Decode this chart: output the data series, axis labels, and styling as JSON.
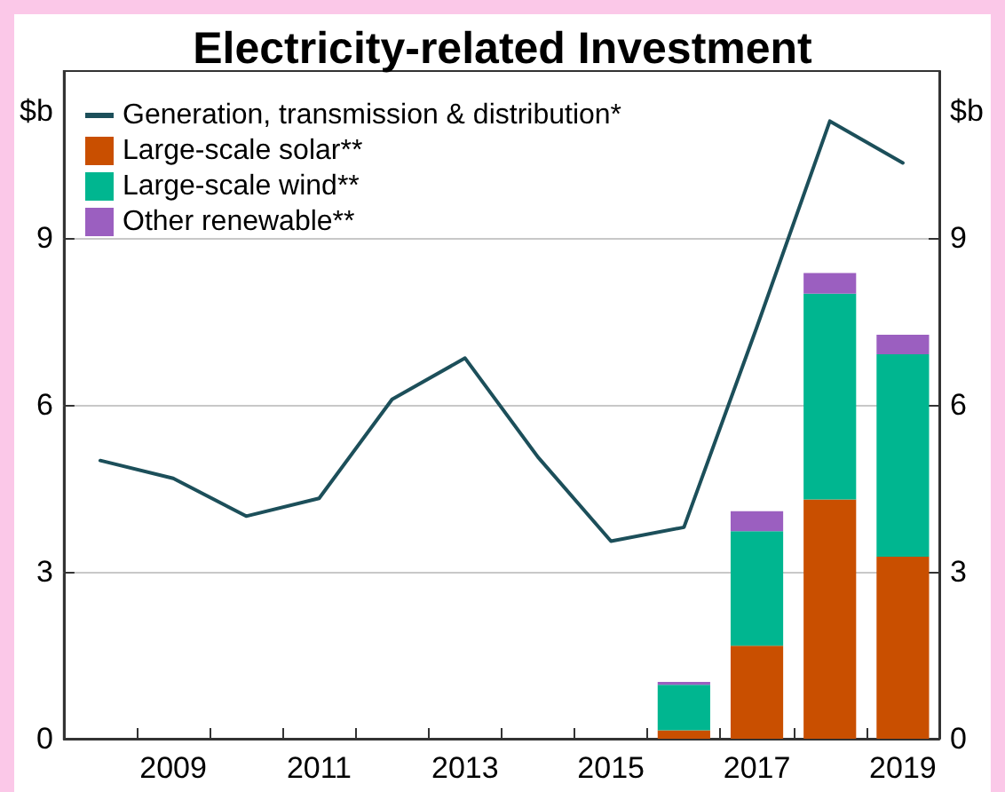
{
  "chart_data": {
    "type": "bar",
    "title": "Electricity-related Investment",
    "ylabel": "$b",
    "y2label": "$b",
    "categories": [
      null,
      "2009",
      null,
      "2011",
      null,
      "2013",
      null,
      "2015",
      null,
      "2017",
      null,
      "2019"
    ],
    "series": [
      {
        "name": "Generation, transmission & distribution*",
        "type": "line",
        "color": "#1c4f5a",
        "values": [
          5.0,
          4.68,
          4.0,
          4.32,
          6.1,
          6.84,
          5.06,
          3.55,
          3.8,
          7.4,
          11.1,
          10.35
        ]
      },
      {
        "name": "Large-scale solar**",
        "color": "#c94f00",
        "values": [
          null,
          null,
          null,
          null,
          null,
          null,
          null,
          null,
          0.15,
          1.67,
          4.3,
          3.27
        ]
      },
      {
        "name": "Large-scale wind**",
        "color": "#00b690",
        "values": [
          null,
          null,
          null,
          null,
          null,
          null,
          null,
          null,
          0.82,
          2.06,
          3.7,
          3.64
        ]
      },
      {
        "name": "Other renewable**",
        "color": "#9b5fc0",
        "values": [
          null,
          null,
          null,
          null,
          null,
          null,
          null,
          null,
          0.05,
          0.36,
          0.37,
          0.35
        ]
      }
    ],
    "stacked": true,
    "ylim": [
      0,
      12
    ],
    "yticks": [
      0,
      3,
      6,
      9
    ],
    "y2lim": [
      0,
      12
    ],
    "y2ticks": [
      0,
      3,
      6,
      9
    ],
    "grid": "y",
    "legend": "top left",
    "marker": "none",
    "line_style": "solid"
  }
}
